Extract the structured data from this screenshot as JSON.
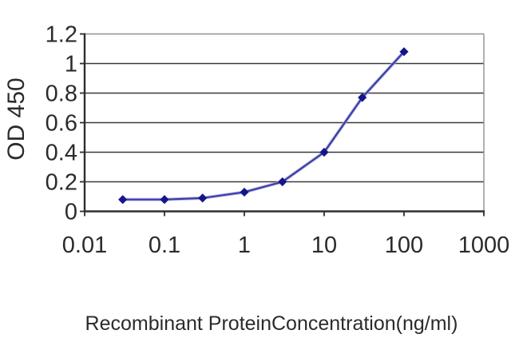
{
  "chart_data": {
    "type": "line",
    "title": "",
    "xlabel": "Recombinant ProteinConcentration(ng/ml)",
    "ylabel": "OD 450",
    "x_scale": "log",
    "xlim": [
      0.01,
      1000
    ],
    "ylim": [
      0,
      1.2
    ],
    "x_ticks": [
      0.01,
      0.1,
      1,
      10,
      100,
      1000
    ],
    "x_tick_labels": [
      "0.01",
      "0.1",
      "1",
      "10",
      "100",
      "1000"
    ],
    "y_ticks": [
      0,
      0.2,
      0.4,
      0.6,
      0.8,
      1,
      1.2
    ],
    "y_tick_labels": [
      "0",
      "0.2",
      "0.4",
      "0.6",
      "0.8",
      "1",
      "1.2"
    ],
    "grid": "horizontal",
    "legend_position": "none",
    "series": [
      {
        "name": "OD 450",
        "marker": "diamond",
        "x": [
          0.03,
          0.1,
          0.3,
          1,
          3,
          10,
          30,
          100
        ],
        "y": [
          0.08,
          0.08,
          0.09,
          0.13,
          0.2,
          0.4,
          0.77,
          1.08
        ]
      }
    ]
  },
  "colors": {
    "figure_background": "#ffffff",
    "plot_background": "#ffffff",
    "grid": "#3a3a3a",
    "axis": "#2e2e2e",
    "border_light": "#909090",
    "tick_text": "#2b2b2b",
    "line": "#3a3aa8",
    "line_halo": "#a8a8d8",
    "marker": "#15158a"
  }
}
